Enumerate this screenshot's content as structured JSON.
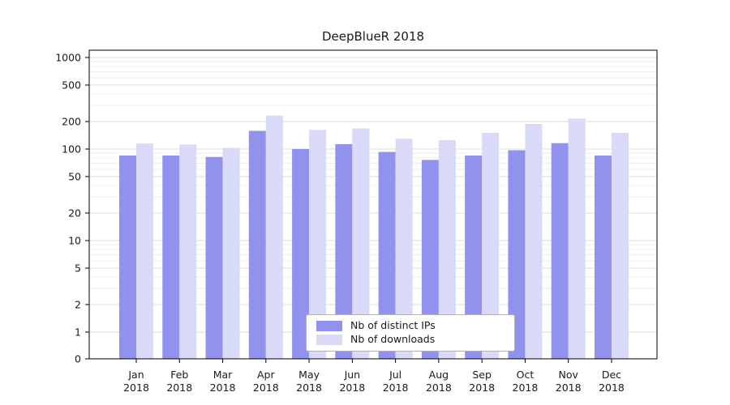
{
  "chart_data": {
    "type": "bar",
    "title": "DeepBlueR 2018",
    "yscale": "symlog",
    "grid": true,
    "legend_position": "lower center",
    "ylim": [
      0,
      1000
    ],
    "y_ticks": [
      0,
      1,
      2,
      5,
      10,
      20,
      50,
      100,
      200,
      500,
      1000
    ],
    "months": [
      "Jan",
      "Feb",
      "Mar",
      "Apr",
      "May",
      "Jun",
      "Jul",
      "Aug",
      "Sep",
      "Oct",
      "Nov",
      "Dec"
    ],
    "year_label": "2018",
    "categories": [
      "Jan 2018",
      "Feb 2018",
      "Mar 2018",
      "Apr 2018",
      "May 2018",
      "Jun 2018",
      "Jul 2018",
      "Aug 2018",
      "Sep 2018",
      "Oct 2018",
      "Nov 2018",
      "Dec 2018"
    ],
    "series": [
      {
        "name": "Nb of distinct IPs",
        "color": "#9191ee",
        "values": [
          85,
          85,
          82,
          158,
          100,
          113,
          93,
          76,
          85,
          97,
          116,
          85
        ]
      },
      {
        "name": "Nb of downloads",
        "color": "#d9d9f8",
        "values": [
          115,
          112,
          103,
          232,
          162,
          168,
          130,
          125,
          150,
          188,
          215,
          150
        ]
      }
    ]
  },
  "colors": {
    "grid_major": "#dcdcdc",
    "grid_minor": "#ececec",
    "axis": "#000000",
    "text": "#1a1a1a"
  }
}
